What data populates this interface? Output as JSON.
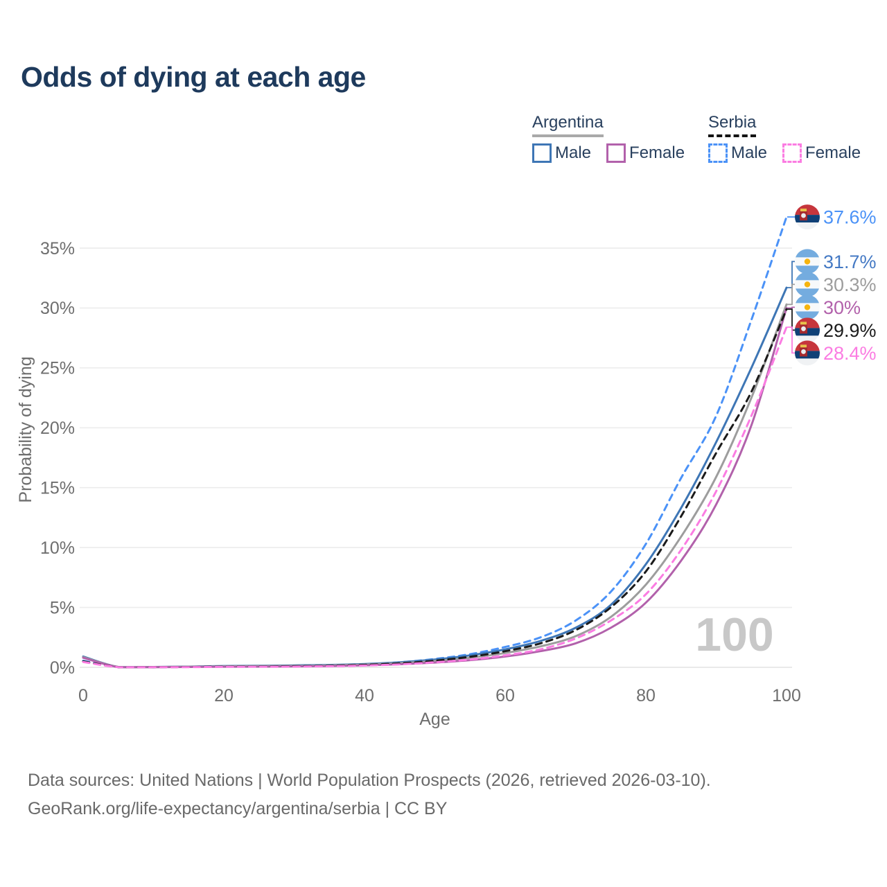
{
  "title": "Odds of dying at each age",
  "legend": {
    "groups": [
      {
        "name": "Argentina",
        "underline_style": "solid",
        "underline_color": "#a9a9a9",
        "items": [
          {
            "label": "Male",
            "color": "#3e76b5",
            "dashed": false
          },
          {
            "label": "Female",
            "color": "#b261ab",
            "dashed": false
          }
        ]
      },
      {
        "name": "Serbia",
        "underline_style": "dashed",
        "underline_color": "#141414",
        "items": [
          {
            "label": "Male",
            "color": "#4b92f7",
            "dashed": true
          },
          {
            "label": "Female",
            "color": "#fb7ce2",
            "dashed": true
          }
        ]
      }
    ]
  },
  "chart_data": {
    "type": "line",
    "title": "Odds of dying at each age",
    "xlabel": "Age",
    "ylabel": "Probability of dying",
    "xlim": [
      0,
      100
    ],
    "ylim": [
      0,
      38
    ],
    "x_ticks": [
      0,
      20,
      40,
      60,
      80,
      100
    ],
    "y_ticks": [
      "0%",
      "5%",
      "10%",
      "15%",
      "20%",
      "25%",
      "30%",
      "35%"
    ],
    "grid": "horizontal",
    "legend_position": "top-right",
    "watermark_age": "100",
    "x": [
      0,
      5,
      10,
      15,
      20,
      25,
      30,
      35,
      40,
      45,
      50,
      55,
      60,
      65,
      70,
      75,
      80,
      85,
      90,
      95,
      100
    ],
    "series": [
      {
        "name": "Serbia Male",
        "flag": "serbia",
        "dashed": true,
        "color": "#4b92f7",
        "label_color": "#4b92f7",
        "end_label": "37.6%",
        "values": [
          0.55,
          0.02,
          0.02,
          0.04,
          0.08,
          0.09,
          0.11,
          0.15,
          0.25,
          0.42,
          0.7,
          1.1,
          1.7,
          2.5,
          3.9,
          6.3,
          10.3,
          15.8,
          21.0,
          29.0,
          37.6
        ]
      },
      {
        "name": "Argentina Male",
        "flag": "argentina",
        "dashed": false,
        "color": "#3e76b5",
        "label_color": "#4479c4",
        "end_label": "31.7%",
        "values": [
          0.9,
          0.03,
          0.03,
          0.06,
          0.11,
          0.13,
          0.16,
          0.2,
          0.28,
          0.42,
          0.65,
          1.0,
          1.5,
          2.2,
          3.3,
          5.2,
          8.6,
          13.3,
          18.8,
          25.0,
          31.7
        ]
      },
      {
        "name": "Argentina Both sexes",
        "flag": "argentina",
        "dashed": false,
        "color": "#9d9d9d",
        "label_color": "#9d9d9d",
        "end_label": "30.3%",
        "values": [
          0.85,
          0.03,
          0.02,
          0.05,
          0.08,
          0.1,
          0.12,
          0.16,
          0.23,
          0.35,
          0.53,
          0.8,
          1.2,
          1.75,
          2.6,
          4.2,
          6.9,
          10.9,
          15.9,
          22.5,
          30.3
        ]
      },
      {
        "name": "Argentina Female",
        "flag": "argentina",
        "dashed": false,
        "color": "#b261ab",
        "label_color": "#b261ab",
        "end_label": "30%",
        "values": [
          0.8,
          0.02,
          0.02,
          0.03,
          0.05,
          0.06,
          0.08,
          0.11,
          0.17,
          0.26,
          0.4,
          0.6,
          0.9,
          1.35,
          2.0,
          3.3,
          5.4,
          8.9,
          13.6,
          20.2,
          30.0
        ]
      },
      {
        "name": "Serbia Both sexes",
        "flag": "serbia",
        "dashed": true,
        "color": "#1b1b1b",
        "label_color": "#1b1b1b",
        "end_label": "29.9%",
        "values": [
          0.5,
          0.02,
          0.02,
          0.03,
          0.06,
          0.07,
          0.09,
          0.12,
          0.2,
          0.33,
          0.55,
          0.88,
          1.35,
          2.0,
          3.1,
          5.0,
          8.0,
          12.6,
          17.9,
          23.0,
          29.9
        ]
      },
      {
        "name": "Serbia Female",
        "flag": "serbia",
        "dashed": true,
        "color": "#fb7ce2",
        "label_color": "#fb7ce2",
        "end_label": "28.4%",
        "values": [
          0.45,
          0.01,
          0.01,
          0.02,
          0.04,
          0.05,
          0.06,
          0.09,
          0.15,
          0.25,
          0.42,
          0.65,
          1.0,
          1.5,
          2.4,
          3.9,
          6.1,
          9.8,
          14.7,
          21.0,
          28.4
        ]
      }
    ]
  },
  "footer": {
    "line1": "Data sources: United Nations | World Population Prospects (2026, retrieved 2026-03-10).",
    "line2": "GeoRank.org/life-expectancy/argentina/serbia | CC BY"
  }
}
